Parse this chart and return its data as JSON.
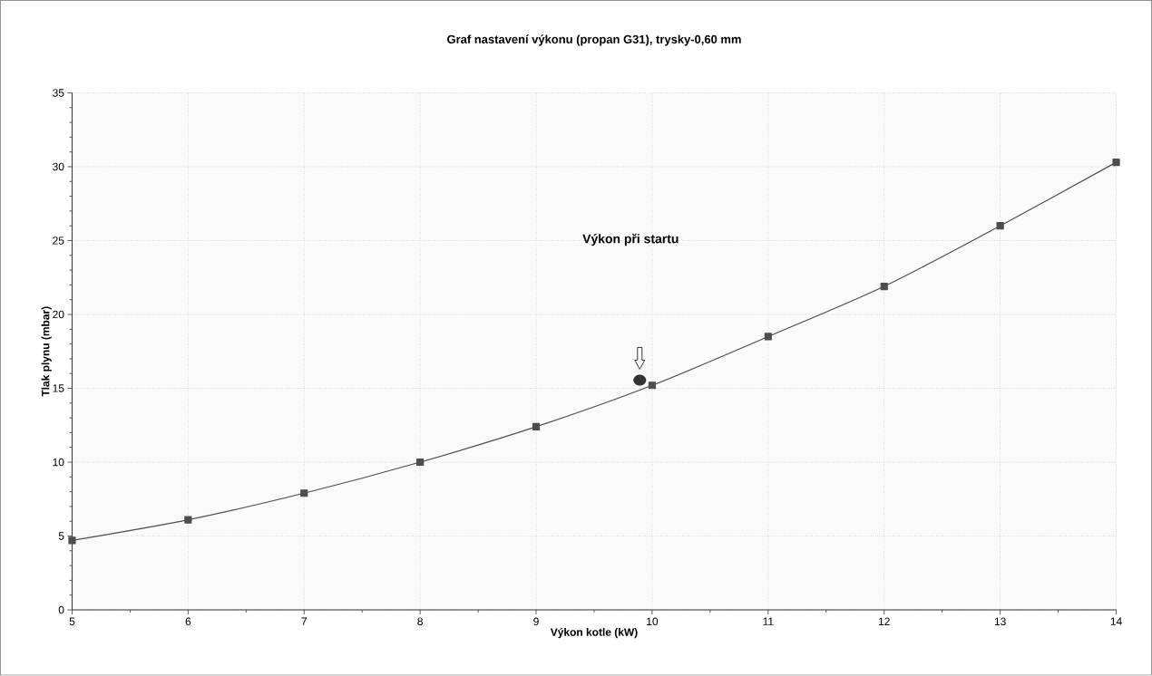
{
  "chart_data": {
    "type": "line",
    "title": "Graf nastavení výkonu (propan G31), trysky-0,60 mm",
    "xlabel": "Výkon kotle (kW)",
    "ylabel": "Tlak plynu (mbar)",
    "x": [
      5,
      6,
      7,
      8,
      9,
      10,
      11,
      12,
      13,
      14
    ],
    "series": [
      {
        "color": "#4d4d4d",
        "values": [
          4.7,
          6.1,
          7.9,
          10.0,
          12.4,
          15.2,
          18.5,
          21.9,
          26.0,
          30.3
        ]
      }
    ],
    "xlim": [
      5,
      14
    ],
    "xticks": [
      5,
      6,
      7,
      8,
      9,
      10,
      11,
      12,
      13,
      14
    ],
    "ylim": [
      0,
      35
    ],
    "yticks": [
      0,
      5,
      10,
      15,
      20,
      25,
      30,
      35
    ],
    "grid": true,
    "marker": "square",
    "line_style": "solid",
    "annotations": [
      "Výkon při startu"
    ]
  }
}
